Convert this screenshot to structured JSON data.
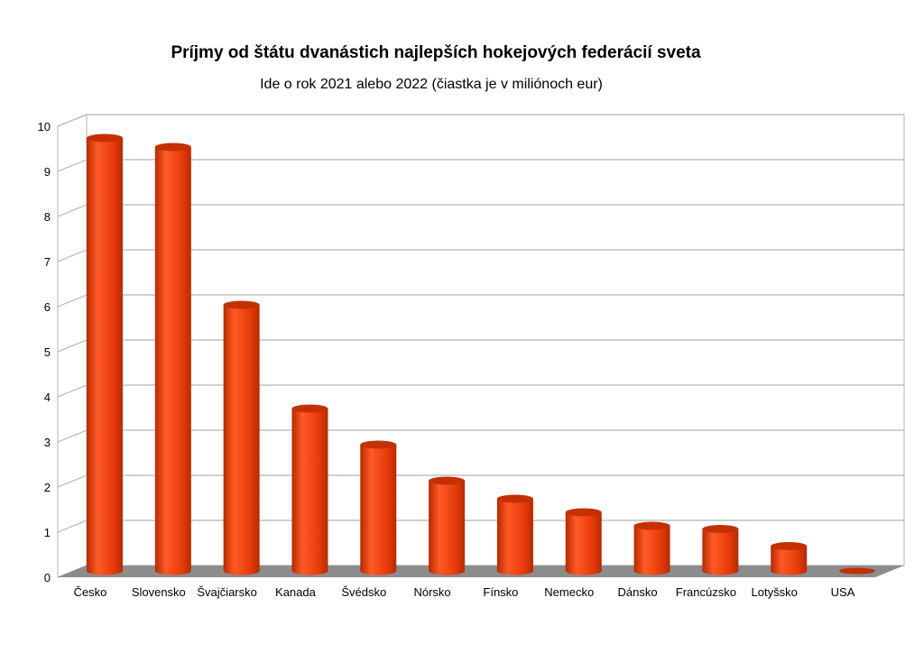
{
  "colors": {
    "bar_light": "#ff5a26",
    "bar_main": "#e63a0a",
    "bar_dark": "#b72a00",
    "bar_top": "#c43000",
    "floor": "#8c8c8c",
    "grid": "#b3b3b3",
    "wall": "#ffffff"
  },
  "chart_data": {
    "type": "bar",
    "title": "Príjmy od štátu dvanástich najlepších hokejových federácií sveta",
    "subtitle": "Ide o rok 2021 alebo 2022 (čiastka je v miliónoch eur)",
    "xlabel": "",
    "ylabel": "",
    "categories": [
      "Česko",
      "Slovensko",
      "Švajčiarsko",
      "Kanada",
      "Švédsko",
      "Nórsko",
      "Fínsko",
      "Nemecko",
      "Dánsko",
      "Francúzsko",
      "Lotyšsko",
      "USA"
    ],
    "values": [
      9.6,
      9.4,
      5.9,
      3.6,
      2.8,
      2.0,
      1.6,
      1.3,
      1.0,
      0.93,
      0.55,
      0.0
    ],
    "ylim": [
      0,
      10
    ],
    "yticks": [
      "0",
      "1",
      "2",
      "3",
      "4",
      "5",
      "6",
      "7",
      "8",
      "9",
      "10"
    ],
    "grid": true,
    "style": "3d-cylinder"
  }
}
